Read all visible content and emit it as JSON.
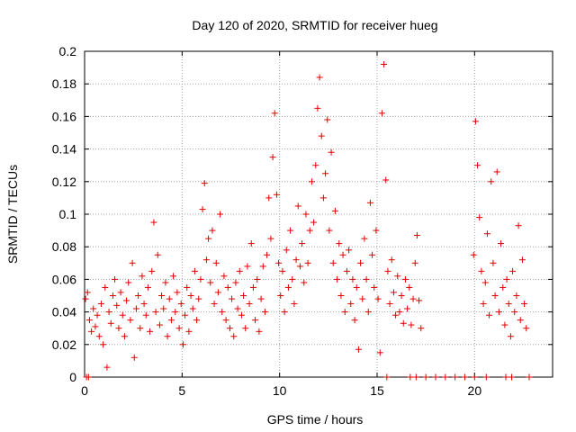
{
  "colors": {
    "marker": "#e00000",
    "grid": "#a0a0a0",
    "axis": "#000000"
  },
  "chart_data": {
    "type": "scatter",
    "title": "Day 120 of 2020, SRMTID for receiver hueg",
    "xlabel": "GPS time / hours",
    "ylabel": "SRMTID / TECUs",
    "xlim": [
      0,
      24
    ],
    "ylim": [
      0,
      0.2
    ],
    "xticks": [
      0,
      5,
      10,
      15,
      20
    ],
    "yticks": [
      0,
      0.02,
      0.04,
      0.06,
      0.08,
      0.1,
      0.12,
      0.14,
      0.16,
      0.18,
      0.2
    ],
    "xtick_labels": [
      "0",
      "5",
      "10",
      "15",
      "20"
    ],
    "ytick_labels": [
      "0",
      "0.02",
      "0.04",
      "0.06",
      "0.08",
      "0.1",
      "0.12",
      "0.14",
      "0.16",
      "0.18",
      "0.2"
    ],
    "grid": true,
    "marker": "+",
    "series": [
      {
        "values": [
          [
            0.05,
            0.048
          ],
          [
            0.15,
            0.052
          ],
          [
            0.25,
            0.035
          ],
          [
            0.35,
            0.028
          ],
          [
            0.45,
            0.042
          ],
          [
            0.55,
            0.031
          ],
          [
            0.65,
            0.038
          ],
          [
            0.75,
            0.025
          ],
          [
            0.85,
            0.045
          ],
          [
            0.95,
            0.02
          ],
          [
            1.05,
            0.055
          ],
          [
            1.15,
            0.006
          ],
          [
            1.25,
            0.04
          ],
          [
            1.35,
            0.033
          ],
          [
            1.45,
            0.05
          ],
          [
            1.55,
            0.06
          ],
          [
            1.65,
            0.044
          ],
          [
            1.75,
            0.03
          ],
          [
            1.85,
            0.052
          ],
          [
            1.95,
            0.038
          ],
          [
            2.05,
            0.025
          ],
          [
            2.15,
            0.047
          ],
          [
            2.25,
            0.058
          ],
          [
            2.35,
            0.035
          ],
          [
            2.45,
            0.07
          ],
          [
            2.55,
            0.012
          ],
          [
            2.65,
            0.042
          ],
          [
            2.75,
            0.05
          ],
          [
            2.85,
            0.03
          ],
          [
            2.95,
            0.062
          ],
          [
            3.05,
            0.045
          ],
          [
            3.15,
            0.038
          ],
          [
            3.25,
            0.055
          ],
          [
            3.35,
            0.028
          ],
          [
            3.45,
            0.065
          ],
          [
            3.55,
            0.095
          ],
          [
            3.65,
            0.04
          ],
          [
            3.75,
            0.075
          ],
          [
            3.85,
            0.032
          ],
          [
            3.95,
            0.05
          ],
          [
            4.05,
            0.042
          ],
          [
            4.15,
            0.058
          ],
          [
            4.25,
            0.025
          ],
          [
            4.35,
            0.048
          ],
          [
            4.45,
            0.035
          ],
          [
            4.55,
            0.062
          ],
          [
            4.65,
            0.04
          ],
          [
            4.75,
            0.052
          ],
          [
            4.85,
            0.03
          ],
          [
            4.95,
            0.045
          ],
          [
            5.05,
            0.02
          ],
          [
            5.15,
            0.038
          ],
          [
            5.25,
            0.055
          ],
          [
            5.35,
            0.028
          ],
          [
            5.45,
            0.05
          ],
          [
            5.55,
            0.042
          ],
          [
            5.65,
            0.065
          ],
          [
            5.75,
            0.035
          ],
          [
            5.85,
            0.048
          ],
          [
            5.95,
            0.06
          ],
          [
            6.05,
            0.103
          ],
          [
            6.15,
            0.119
          ],
          [
            6.25,
            0.072
          ],
          [
            6.35,
            0.085
          ],
          [
            6.45,
            0.058
          ],
          [
            6.55,
            0.09
          ],
          [
            6.65,
            0.045
          ],
          [
            6.75,
            0.07
          ],
          [
            6.85,
            0.052
          ],
          [
            6.95,
            0.1
          ],
          [
            7.05,
            0.04
          ],
          [
            7.15,
            0.062
          ],
          [
            7.25,
            0.035
          ],
          [
            7.35,
            0.055
          ],
          [
            7.45,
            0.03
          ],
          [
            7.55,
            0.048
          ],
          [
            7.65,
            0.025
          ],
          [
            7.75,
            0.058
          ],
          [
            7.85,
            0.042
          ],
          [
            7.95,
            0.065
          ],
          [
            8.05,
            0.038
          ],
          [
            8.15,
            0.05
          ],
          [
            8.25,
            0.03
          ],
          [
            8.35,
            0.068
          ],
          [
            8.45,
            0.045
          ],
          [
            8.55,
            0.082
          ],
          [
            8.65,
            0.055
          ],
          [
            8.75,
            0.035
          ],
          [
            8.85,
            0.06
          ],
          [
            8.95,
            0.028
          ],
          [
            9.05,
            0.048
          ],
          [
            9.15,
            0.068
          ],
          [
            9.25,
            0.04
          ],
          [
            9.35,
            0.075
          ],
          [
            9.45,
            0.11
          ],
          [
            9.55,
            0.085
          ],
          [
            9.65,
            0.135
          ],
          [
            9.75,
            0.162
          ],
          [
            9.85,
            0.112
          ],
          [
            9.95,
            0.07
          ],
          [
            10.05,
            0.05
          ],
          [
            10.15,
            0.065
          ],
          [
            10.25,
            0.04
          ],
          [
            10.35,
            0.078
          ],
          [
            10.45,
            0.055
          ],
          [
            10.55,
            0.09
          ],
          [
            10.65,
            0.06
          ],
          [
            10.75,
            0.045
          ],
          [
            10.85,
            0.072
          ],
          [
            10.95,
            0.105
          ],
          [
            11.05,
            0.068
          ],
          [
            11.15,
            0.082
          ],
          [
            11.25,
            0.058
          ],
          [
            11.35,
            0.1
          ],
          [
            11.45,
            0.07
          ],
          [
            11.55,
            0.09
          ],
          [
            11.65,
            0.12
          ],
          [
            11.75,
            0.095
          ],
          [
            11.85,
            0.13
          ],
          [
            11.95,
            0.165
          ],
          [
            12.05,
            0.184
          ],
          [
            12.15,
            0.148
          ],
          [
            12.25,
            0.11
          ],
          [
            12.35,
            0.125
          ],
          [
            12.45,
            0.158
          ],
          [
            12.55,
            0.09
          ],
          [
            12.65,
            0.138
          ],
          [
            12.75,
            0.07
          ],
          [
            12.85,
            0.102
          ],
          [
            12.95,
            0.06
          ],
          [
            13.05,
            0.082
          ],
          [
            13.15,
            0.05
          ],
          [
            13.25,
            0.075
          ],
          [
            13.35,
            0.04
          ],
          [
            13.45,
            0.065
          ],
          [
            13.55,
            0.078
          ],
          [
            13.65,
            0.045
          ],
          [
            13.75,
            0.06
          ],
          [
            13.85,
            0.035
          ],
          [
            13.95,
            0.055
          ],
          [
            14.05,
            0.017
          ],
          [
            14.15,
            0.07
          ],
          [
            14.25,
            0.048
          ],
          [
            14.35,
            0.085
          ],
          [
            14.45,
            0.06
          ],
          [
            14.55,
            0.04
          ],
          [
            14.65,
            0.107
          ],
          [
            14.75,
            0.075
          ],
          [
            14.85,
            0.055
          ],
          [
            14.95,
            0.09
          ],
          [
            15.05,
            0.048
          ],
          [
            15.15,
            0.015
          ],
          [
            15.25,
            0.162
          ],
          [
            15.35,
            0.192
          ],
          [
            15.45,
            0.121
          ],
          [
            15.55,
            0.065
          ],
          [
            15.65,
            0.045
          ],
          [
            15.75,
            0.072
          ],
          [
            15.85,
            0.052
          ],
          [
            15.95,
            0.038
          ],
          [
            16.05,
            0.062
          ],
          [
            16.15,
            0.04
          ],
          [
            16.25,
            0.05
          ],
          [
            16.35,
            0.033
          ],
          [
            16.45,
            0.06
          ],
          [
            16.55,
            0.042
          ],
          [
            16.65,
            0.055
          ],
          [
            16.75,
            0.032
          ],
          [
            16.85,
            0.048
          ],
          [
            16.95,
            0.07
          ],
          [
            17.05,
            0.087
          ],
          [
            17.15,
            0.047
          ],
          [
            17.25,
            0.03
          ],
          [
            19.95,
            0.075
          ],
          [
            20.05,
            0.157
          ],
          [
            20.15,
            0.13
          ],
          [
            20.25,
            0.098
          ],
          [
            20.35,
            0.065
          ],
          [
            20.45,
            0.045
          ],
          [
            20.55,
            0.058
          ],
          [
            20.65,
            0.088
          ],
          [
            20.75,
            0.038
          ],
          [
            20.85,
            0.12
          ],
          [
            20.95,
            0.07
          ],
          [
            21.05,
            0.05
          ],
          [
            21.15,
            0.126
          ],
          [
            21.25,
            0.04
          ],
          [
            21.35,
            0.082
          ],
          [
            21.45,
            0.055
          ],
          [
            21.55,
            0.032
          ],
          [
            21.65,
            0.06
          ],
          [
            21.75,
            0.045
          ],
          [
            21.85,
            0.025
          ],
          [
            21.95,
            0.065
          ],
          [
            22.05,
            0.04
          ],
          [
            22.15,
            0.05
          ],
          [
            22.25,
            0.093
          ],
          [
            22.35,
            0.035
          ],
          [
            22.45,
            0.072
          ],
          [
            22.55,
            0.045
          ],
          [
            22.65,
            0.03
          ],
          [
            0.1,
            0.0
          ],
          [
            0.2,
            0.0
          ],
          [
            15.5,
            0.0
          ],
          [
            16.7,
            0.0
          ],
          [
            17.0,
            0.0
          ],
          [
            17.5,
            0.0
          ],
          [
            18.0,
            0.0
          ],
          [
            18.5,
            0.0
          ],
          [
            19.0,
            0.0
          ],
          [
            19.5,
            0.0
          ],
          [
            20.0,
            0.0
          ],
          [
            20.6,
            0.0
          ],
          [
            21.6,
            0.0
          ],
          [
            21.9,
            0.0
          ],
          [
            22.8,
            0.0
          ]
        ]
      }
    ]
  }
}
